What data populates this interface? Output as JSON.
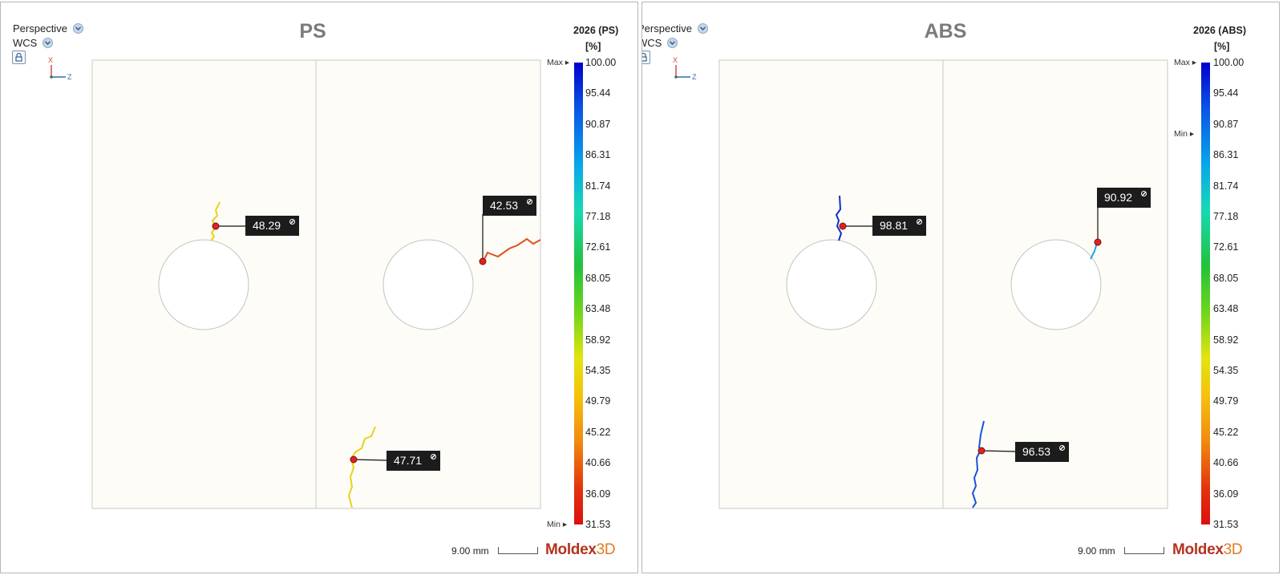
{
  "panels": [
    {
      "view_mode": "Perspective",
      "coord_system": "WCS",
      "triad": {
        "vertical_axis": "X",
        "horizontal_axis": "Z"
      },
      "title": "PS",
      "legend": {
        "title": "2026 (PS)",
        "unit": "[%]",
        "max_label": "Max",
        "min_label": "Min",
        "max_value": 100.0,
        "min_value": 31.53,
        "ticks": [
          "100.00",
          "95.44",
          "90.87",
          "86.31",
          "81.74",
          "77.18",
          "72.61",
          "68.05",
          "63.48",
          "58.92",
          "54.35",
          "49.79",
          "45.22",
          "40.66",
          "36.09",
          "31.53"
        ],
        "min_marker_value": 31.53
      },
      "probes": [
        {
          "value": 48.29,
          "line_color": "#e8d21a"
        },
        {
          "value": 42.53,
          "line_color": "#e2501a"
        },
        {
          "value": 47.71,
          "line_color": "#e8d21a"
        }
      ],
      "scale": {
        "text": "9.00 mm"
      },
      "brand": {
        "part1": "Moldex",
        "part2": "3D"
      }
    },
    {
      "view_mode": "Perspective",
      "coord_system": "WCS",
      "triad": {
        "vertical_axis": "X",
        "horizontal_axis": "Z"
      },
      "title": "ABS",
      "legend": {
        "title": "2026 (ABS)",
        "unit": "[%]",
        "max_label": "Max",
        "min_label": "Min",
        "max_value": 100.0,
        "min_value": 31.53,
        "ticks": [
          "100.00",
          "95.44",
          "90.87",
          "86.31",
          "81.74",
          "77.18",
          "72.61",
          "68.05",
          "63.48",
          "58.92",
          "54.35",
          "49.79",
          "45.22",
          "40.66",
          "36.09",
          "31.53"
        ],
        "min_marker_value": 89.4
      },
      "probes": [
        {
          "value": 98.81,
          "line_color": "#1030c8"
        },
        {
          "value": 90.92,
          "line_color": "#25a6e8"
        },
        {
          "value": 96.53,
          "line_color": "#1a52d8"
        }
      ],
      "scale": {
        "text": "9.00 mm"
      },
      "brand": {
        "part1": "Moldex",
        "part2": "3D"
      }
    }
  ],
  "colors": {
    "part_fill": "#fdfcf6",
    "part_edge": "#c8c8c8",
    "probe_dot": "#e02222"
  }
}
